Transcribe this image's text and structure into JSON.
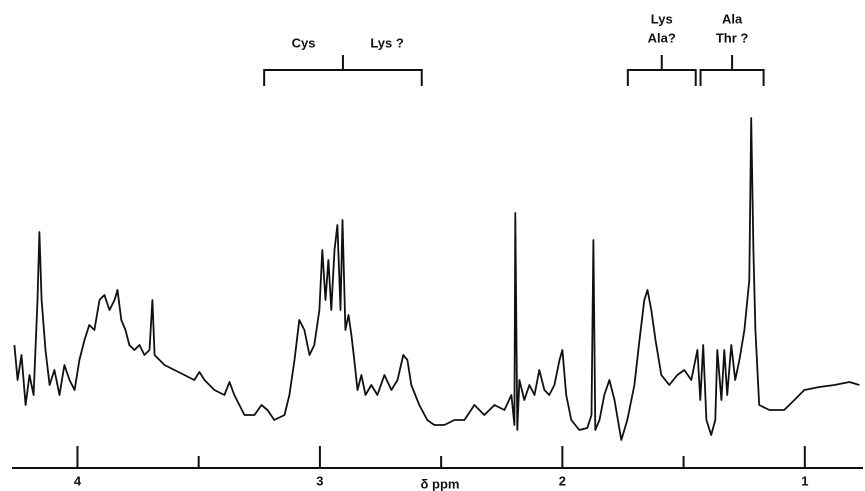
{
  "chart_data": {
    "type": "line",
    "x_label": "δ ppm",
    "color": "#111111",
    "xlim": [
      4.27,
      0.76
    ],
    "xticks": [
      4,
      3,
      2,
      1
    ],
    "xminor_ticks": [
      3.5,
      2.5,
      1.5
    ],
    "ylim": [
      0,
      340
    ],
    "brackets": [
      {
        "labels": [
          "Cys",
          "Lys ?"
        ],
        "from": 3.23,
        "to": 2.58
      },
      {
        "labels": [
          "Lys",
          "Ala?"
        ],
        "from": 1.73,
        "to": 1.45
      },
      {
        "labels": [
          "Ala",
          "Thr ?"
        ],
        "from": 1.43,
        "to": 1.17
      }
    ],
    "x": [
      4.26,
      4.247,
      4.231,
      4.214,
      4.198,
      4.181,
      4.165,
      4.157,
      4.148,
      4.132,
      4.115,
      4.095,
      4.074,
      4.054,
      4.033,
      4.012,
      3.992,
      3.971,
      3.951,
      3.93,
      3.909,
      3.889,
      3.868,
      3.847,
      3.835,
      3.819,
      3.802,
      3.786,
      3.765,
      3.744,
      3.724,
      3.703,
      3.691,
      3.682,
      3.641,
      3.6,
      3.559,
      3.518,
      3.497,
      3.476,
      3.435,
      3.394,
      3.373,
      3.353,
      3.311,
      3.27,
      3.241,
      3.216,
      3.188,
      3.146,
      3.126,
      3.105,
      3.085,
      3.064,
      3.043,
      3.023,
      3.002,
      2.99,
      2.977,
      2.965,
      2.953,
      2.94,
      2.928,
      2.915,
      2.907,
      2.895,
      2.882,
      2.87,
      2.858,
      2.845,
      2.829,
      2.812,
      2.788,
      2.763,
      2.734,
      2.705,
      2.68,
      2.656,
      2.639,
      2.623,
      2.59,
      2.557,
      2.528,
      2.487,
      2.445,
      2.404,
      2.363,
      2.322,
      2.28,
      2.239,
      2.21,
      2.198,
      2.194,
      2.186,
      2.177,
      2.157,
      2.136,
      2.115,
      2.095,
      2.074,
      2.054,
      2.033,
      2.012,
      2.0,
      1.984,
      1.963,
      1.93,
      1.897,
      1.88,
      1.872,
      1.864,
      1.847,
      1.827,
      1.806,
      1.785,
      1.757,
      1.732,
      1.703,
      1.682,
      1.662,
      1.649,
      1.633,
      1.616,
      1.592,
      1.559,
      1.526,
      1.497,
      1.468,
      1.443,
      1.431,
      1.419,
      1.406,
      1.386,
      1.369,
      1.361,
      1.344,
      1.332,
      1.32,
      1.303,
      1.287,
      1.27,
      1.249,
      1.229,
      1.221,
      1.212,
      1.204,
      1.188,
      1.146,
      1.085,
      1.043,
      1.002,
      0.94,
      0.878,
      0.816,
      0.775
    ],
    "values": [
      105,
      70,
      95,
      45,
      75,
      55,
      150,
      218,
      150,
      100,
      65,
      80,
      55,
      85,
      70,
      60,
      90,
      110,
      125,
      120,
      150,
      155,
      140,
      150,
      160,
      130,
      120,
      105,
      100,
      105,
      95,
      100,
      150,
      95,
      85,
      80,
      75,
      70,
      78,
      70,
      60,
      55,
      68,
      55,
      35,
      35,
      45,
      40,
      30,
      35,
      55,
      90,
      130,
      120,
      95,
      105,
      140,
      200,
      150,
      190,
      140,
      200,
      225,
      140,
      230,
      120,
      135,
      115,
      90,
      60,
      75,
      55,
      65,
      55,
      75,
      60,
      70,
      95,
      90,
      65,
      45,
      30,
      25,
      25,
      30,
      30,
      45,
      35,
      45,
      40,
      55,
      25,
      237,
      20,
      70,
      50,
      65,
      55,
      80,
      60,
      55,
      65,
      90,
      100,
      55,
      30,
      20,
      22,
      35,
      210,
      20,
      30,
      55,
      70,
      50,
      10,
      30,
      65,
      110,
      150,
      160,
      140,
      110,
      75,
      65,
      75,
      80,
      70,
      100,
      50,
      105,
      30,
      15,
      30,
      100,
      50,
      100,
      55,
      105,
      70,
      90,
      120,
      170,
      332,
      200,
      120,
      45,
      40,
      40,
      50,
      60,
      63,
      65,
      68,
      65
    ]
  }
}
